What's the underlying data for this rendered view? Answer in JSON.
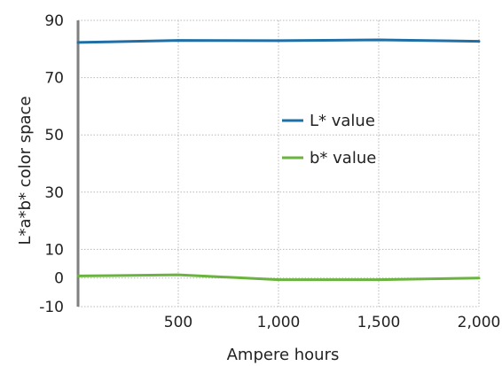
{
  "chart_data": {
    "type": "line",
    "xlabel": "Ampere hours",
    "ylabel": "L*a*b* color space",
    "xlim": [
      0,
      2000
    ],
    "ylim": [
      -10,
      90
    ],
    "x_ticks": [
      500,
      1000,
      1500,
      2000
    ],
    "x_tick_labels": [
      "500",
      "1,000",
      "1,500",
      "2,000"
    ],
    "y_ticks": [
      -10,
      0,
      10,
      30,
      50,
      70,
      90
    ],
    "y_tick_labels": [
      "-10",
      "0",
      "10",
      "30",
      "50",
      "70",
      "90"
    ],
    "grid": true,
    "legend_position": "center-right",
    "series": [
      {
        "name": "L* value",
        "color": "#1f6fa6",
        "x": [
          0,
          500,
          1000,
          1500,
          2000
        ],
        "y": [
          82.3,
          83.0,
          82.9,
          83.2,
          82.7
        ]
      },
      {
        "name": "b* value",
        "color": "#6ab33e",
        "x": [
          0,
          500,
          1000,
          1500,
          2000
        ],
        "y": [
          0.7,
          1.1,
          -0.6,
          -0.6,
          0.0
        ]
      }
    ]
  }
}
